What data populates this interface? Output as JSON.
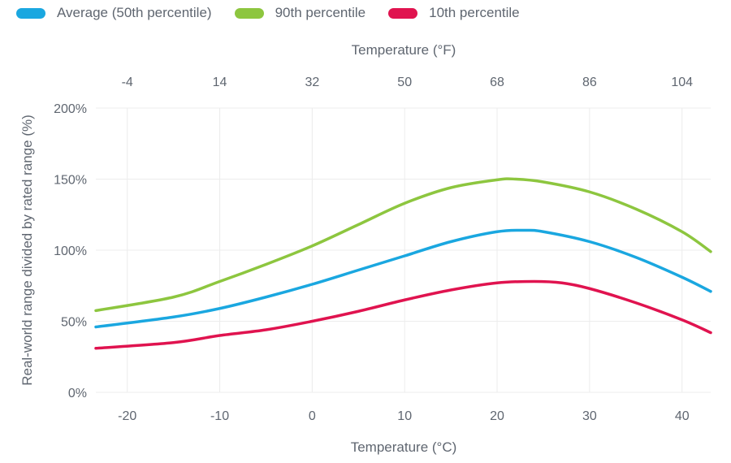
{
  "chart_data": {
    "type": "line",
    "xlabel": "Temperature (°C)",
    "x2label": "Temperature (°F)",
    "ylabel": "Real-world range divided by rated range (%)",
    "xlim": [
      -23.4,
      43.1
    ],
    "ylim": [
      0,
      200
    ],
    "xticks": [
      -20,
      -10,
      0,
      10,
      20,
      30,
      40
    ],
    "xtick_labels": [
      "-20",
      "-10",
      "0",
      "10",
      "20",
      "30",
      "40"
    ],
    "x2tick_labels": [
      "-4",
      "14",
      "32",
      "50",
      "68",
      "86",
      "104"
    ],
    "yticks": [
      0,
      50,
      100,
      150,
      200
    ],
    "ytick_labels": [
      "0%",
      "50%",
      "100%",
      "150%",
      "200%"
    ],
    "grid": true,
    "legend_position": "top-left",
    "series": [
      {
        "name": "Average (50th percentile)",
        "color": "#1aa7e0",
        "x": [
          -23.4,
          -15,
          -10,
          -5,
          0,
          5,
          10,
          15,
          20,
          23,
          25,
          30,
          35,
          40,
          43.1
        ],
        "y": [
          46,
          53,
          59,
          67,
          76,
          86,
          96,
          106,
          113,
          114,
          113,
          106,
          95,
          81,
          71
        ]
      },
      {
        "name": "90th percentile",
        "color": "#8dc63f",
        "x": [
          -23.4,
          -15,
          -10,
          -5,
          0,
          5,
          10,
          15,
          20,
          22,
          25,
          30,
          35,
          40,
          43.1
        ],
        "y": [
          57.5,
          67,
          78,
          90,
          103,
          118,
          133,
          144,
          149.5,
          150,
          148,
          141,
          129,
          113,
          99
        ]
      },
      {
        "name": "10th percentile",
        "color": "#e0134f",
        "x": [
          -23.4,
          -15,
          -10,
          -5,
          0,
          5,
          10,
          15,
          20,
          24,
          27,
          30,
          35,
          40,
          43.1
        ],
        "y": [
          31,
          35,
          40,
          44,
          50,
          57,
          65,
          72,
          77,
          78,
          77,
          73,
          63,
          51,
          42
        ]
      }
    ]
  }
}
